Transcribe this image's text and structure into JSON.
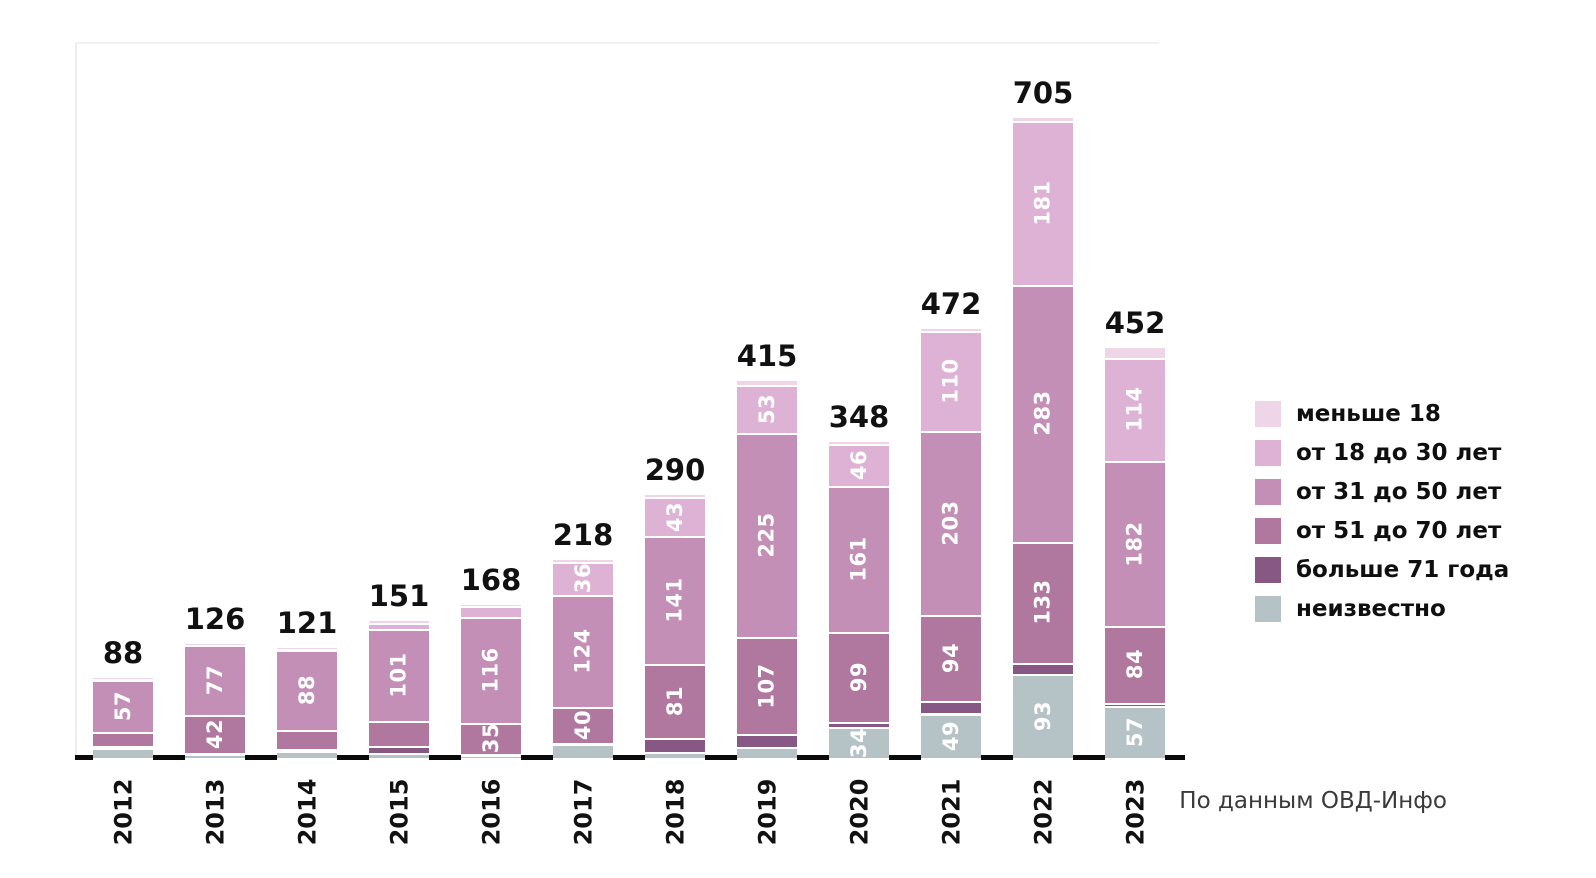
{
  "chart_data": {
    "type": "bar",
    "stacked": true,
    "title": "",
    "categories": [
      "2012",
      "2013",
      "2014",
      "2015",
      "2016",
      "2017",
      "2018",
      "2019",
      "2020",
      "2021",
      "2022",
      "2023"
    ],
    "series": [
      {
        "name": "меньше 18",
        "color": "#eed5e7",
        "values": [
          1,
          1,
          1,
          2,
          1,
          2,
          3,
          4,
          2,
          2,
          3,
          11
        ]
      },
      {
        "name": "от 18 до 30 лет",
        "color": "#ddb2d5",
        "values": [
          1,
          1,
          1,
          7,
          12,
          36,
          43,
          53,
          46,
          110,
          181,
          114
        ]
      },
      {
        "name": "от 31 до 50 лет",
        "color": "#c48fb7",
        "values": [
          57,
          77,
          88,
          101,
          116,
          124,
          141,
          225,
          161,
          203,
          283,
          182
        ]
      },
      {
        "name": "от 51 до 70 лет",
        "color": "#b0789f",
        "values": [
          16,
          42,
          21,
          28,
          35,
          40,
          81,
          107,
          99,
          94,
          133,
          84
        ]
      },
      {
        "name": "больше 71 года",
        "color": "#875883",
        "values": [
          2,
          1,
          2,
          7,
          1,
          1,
          15,
          14,
          6,
          14,
          12,
          4
        ]
      },
      {
        "name": "неизвестно",
        "color": "#b5c3c6",
        "values": [
          11,
          4,
          8,
          6,
          3,
          15,
          7,
          12,
          34,
          49,
          93,
          57
        ]
      }
    ],
    "totals": [
      88,
      126,
      121,
      151,
      168,
      218,
      290,
      415,
      348,
      472,
      705,
      452
    ],
    "label_threshold": 30,
    "value_label_color": "#ffffff",
    "legend_position": "right",
    "grid": false,
    "ylim": [
      0,
      705
    ]
  },
  "attribution": "По данным ОВД-Инфо"
}
